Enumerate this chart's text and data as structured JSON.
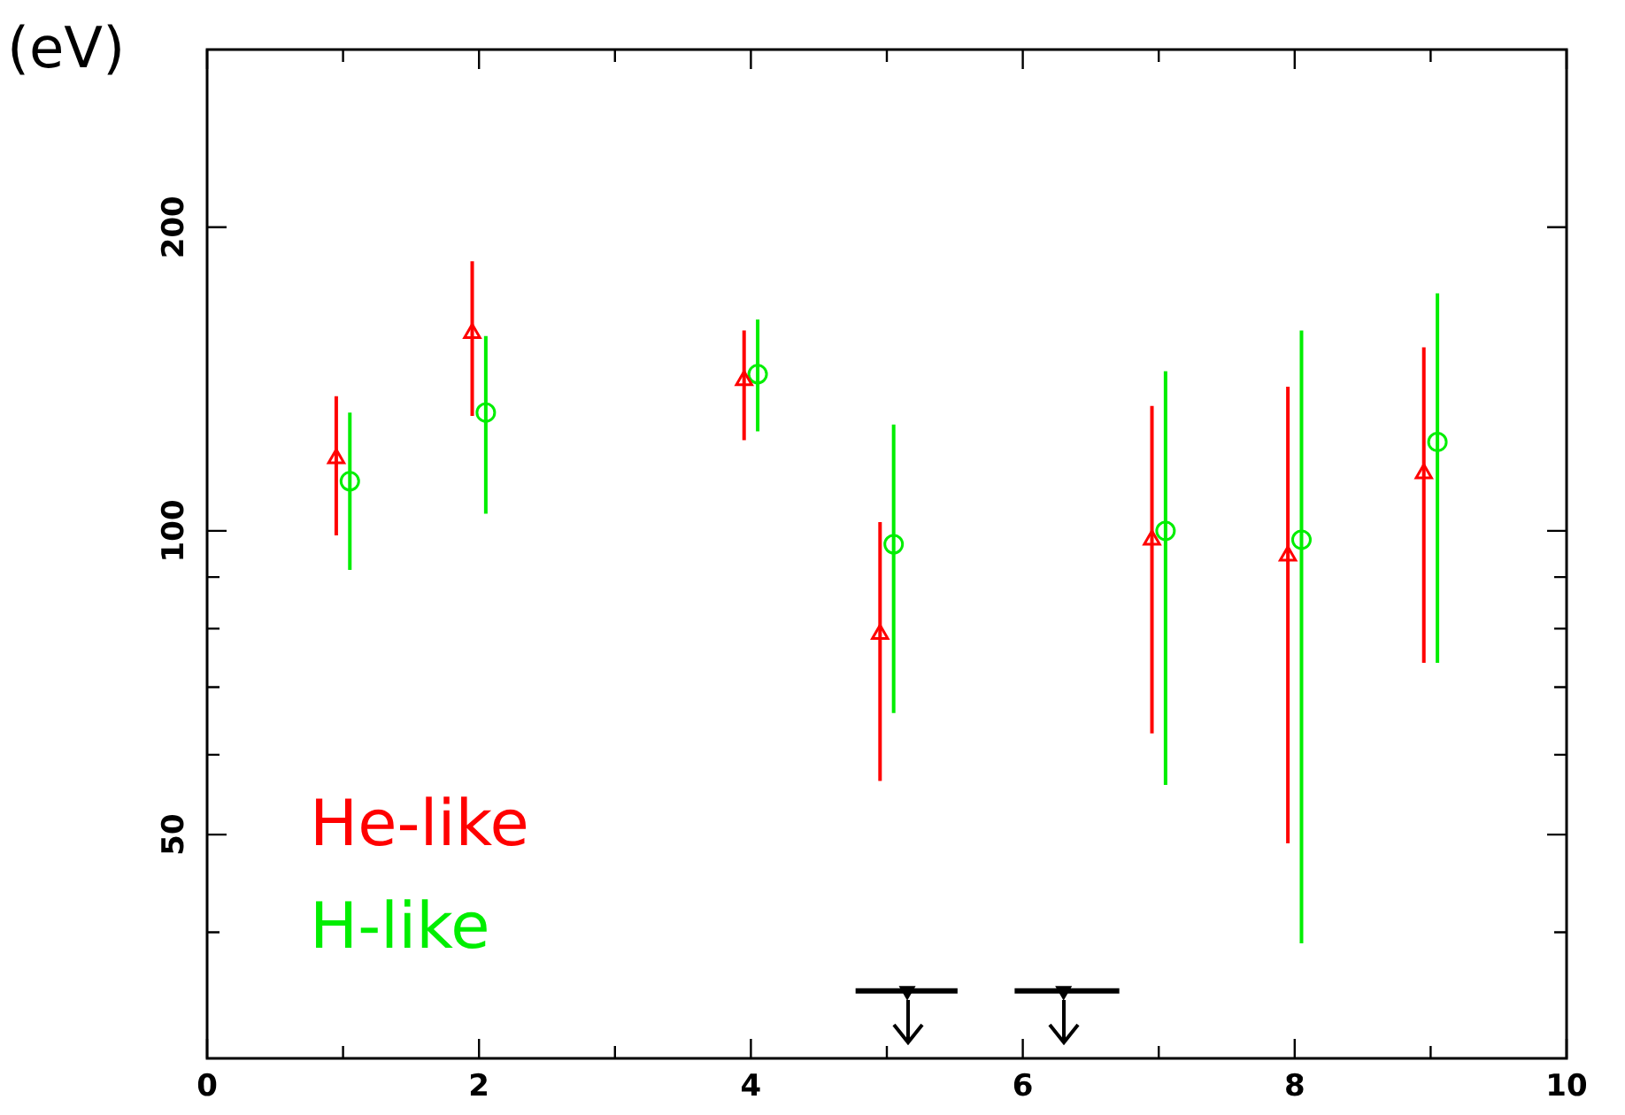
{
  "chart_data": {
    "type": "scatter",
    "ylabel": "(eV)",
    "log": "y",
    "xlim": [
      0,
      10
    ],
    "ylim": [
      30,
      300
    ],
    "xticks": [
      0,
      {
        "value": 1,
        "label": null
      },
      2,
      {
        "value": 3,
        "label": null
      },
      4,
      {
        "value": 5,
        "label": null
      },
      6,
      {
        "value": 7,
        "label": null
      },
      8,
      {
        "value": 9,
        "label": null
      },
      10
    ],
    "yticks": [
      {
        "value": 40,
        "label": null
      },
      50,
      {
        "value": 60,
        "label": null
      },
      {
        "value": 70,
        "label": null
      },
      {
        "value": 80,
        "label": null
      },
      {
        "value": 90,
        "label": null
      },
      100,
      200
    ],
    "legend": "bottom left",
    "grid": false,
    "series": [
      {
        "name": "He-like",
        "type": "scatter",
        "marker": "triangle",
        "color": "#ff0000",
        "x": [
          0.95,
          1.95,
          3.95,
          4.95,
          6.95,
          7.95,
          8.95
        ],
        "values": [
          118,
          157,
          141,
          79,
          98,
          94.5,
          114
        ],
        "errors": [
          [
            99,
            136
          ],
          [
            130,
            185
          ],
          [
            123,
            158
          ],
          [
            56.5,
            102
          ],
          [
            63,
            133
          ],
          [
            49,
            139
          ],
          [
            74,
            152
          ]
        ]
      },
      {
        "name": "H-like",
        "type": "scatter",
        "marker": "circle",
        "color": "#00ee00",
        "x": [
          1.05,
          2.05,
          4.05,
          5.05,
          7.05,
          8.05,
          9.05
        ],
        "values": [
          112,
          131,
          143,
          97,
          100,
          98,
          122.5
        ],
        "errors": [
          [
            91.5,
            131
          ],
          [
            104,
            156
          ],
          [
            125.5,
            162
          ],
          [
            66,
            127.5
          ],
          [
            56,
            144
          ],
          [
            39,
            158
          ],
          [
            74,
            172
          ]
        ]
      },
      {
        "type": "scatter",
        "marker": "triangle",
        "color": "#000000",
        "x": [
          5.15,
          6.3
        ],
        "values": [
          35,
          35
        ],
        "xerrors": [
          [
            4.77,
            5.52
          ],
          [
            5.94,
            6.71
          ]
        ]
      }
    ]
  }
}
